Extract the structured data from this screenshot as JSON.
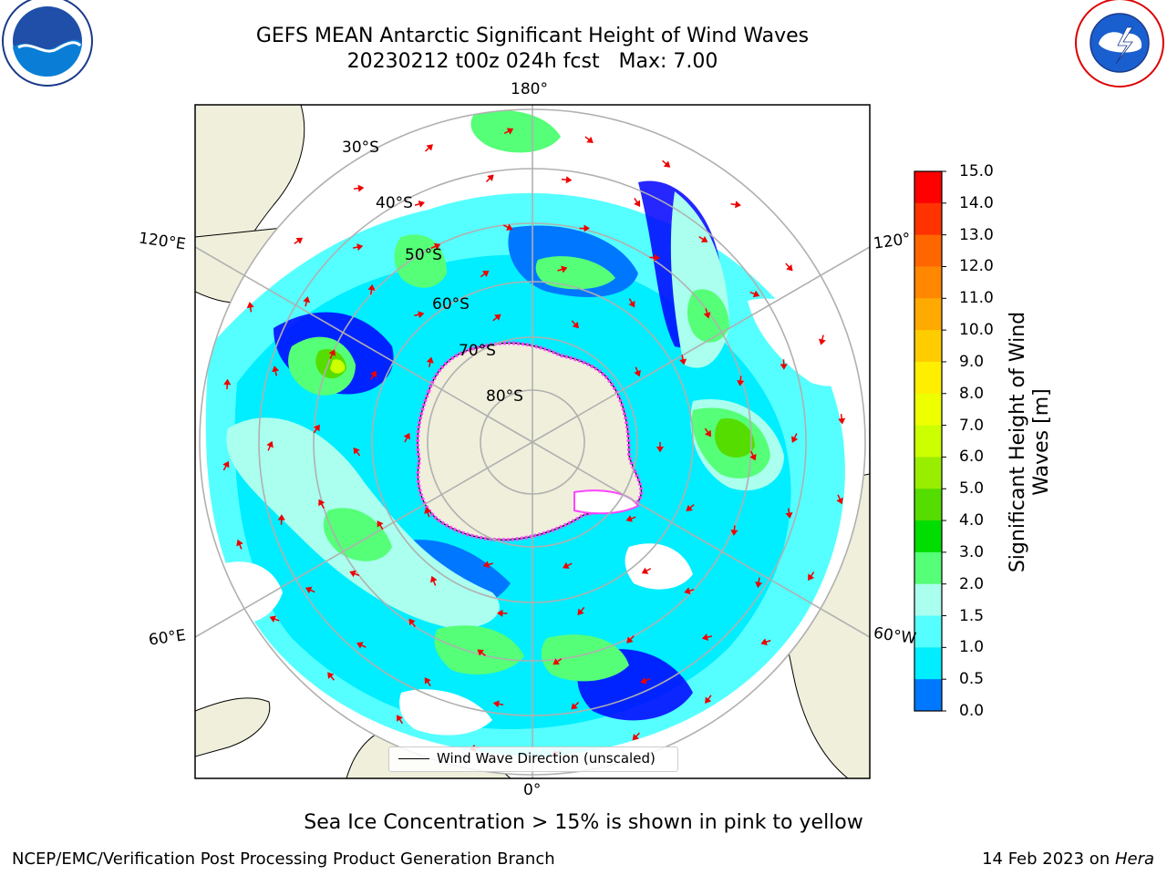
{
  "title": {
    "line1": "GEFS MEAN Antarctic Significant Height of Wind Waves",
    "line2": "20230212 t00z 024h fcst   Max: 7.00"
  },
  "longitude_labels": {
    "top": "180°",
    "bottom": "0°",
    "left_upper": "120°E",
    "left_lower": "60°E",
    "right_upper": "120°",
    "right_lower": "60°W"
  },
  "latitude_labels": [
    "30°S",
    "40°S",
    "50°S",
    "60°S",
    "70°S",
    "80°S"
  ],
  "legend": {
    "label": "Wind Wave Direction (unscaled)"
  },
  "colorbar": {
    "title": "Significant Height of Wind Waves [m]",
    "title_line1": "Significant Height of Wind",
    "title_line2": "Waves [m]",
    "ticks": [
      "15.0",
      "14.0",
      "13.0",
      "12.0",
      "11.0",
      "10.0",
      "9.0",
      "8.0",
      "7.0",
      "6.0",
      "5.0",
      "4.0",
      "3.0",
      "2.0",
      "1.5",
      "1.0",
      "0.5",
      "0.0"
    ],
    "colors": [
      "#ff0000",
      "#ff3300",
      "#ff6600",
      "#ff8800",
      "#ffaa00",
      "#ffcc00",
      "#ffee00",
      "#eeff00",
      "#ccff00",
      "#99ee00",
      "#55dd00",
      "#00dd00",
      "#55ff77",
      "#aaffee",
      "#55ffff",
      "#00eeff",
      "#0077ff",
      "#0000ff"
    ]
  },
  "footnote": "Sea Ice Concentration > 15% is shown in pink to yellow",
  "credit": "NCEP/EMC/Verification Post Processing Product Generation Branch",
  "date": {
    "prefix": "14 Feb 2023 on ",
    "machine": "Hera"
  },
  "logos": {
    "left": "NOAA",
    "right": "NATIONAL WEATHER SERVICE"
  },
  "palette": {
    "land": "#efefdb",
    "grid": "#b0b0b0",
    "arrow": "#ee0000",
    "ice": "#ff44ff"
  }
}
